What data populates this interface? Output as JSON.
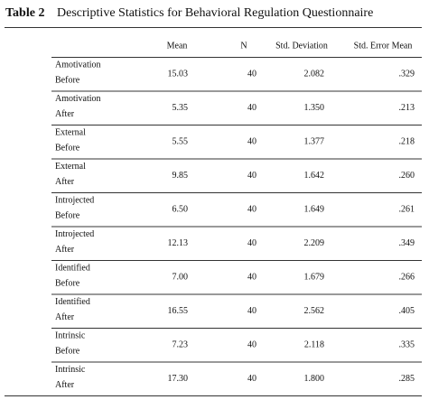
{
  "table_label": "Table 2",
  "title": "Descriptive Statistics for Behavioral Regulation Questionnaire",
  "table": {
    "header": [
      "Mean",
      "N",
      "Std. Deviation",
      "Std. Error Mean"
    ],
    "rows": [
      {
        "label": [
          "Amotivation",
          "Before"
        ],
        "cells": [
          "15.03",
          "40",
          "2.082",
          ".329"
        ]
      },
      {
        "label": [
          "Amotivation",
          "After"
        ],
        "cells": [
          "5.35",
          "40",
          "1.350",
          ".213"
        ]
      },
      {
        "label": [
          "External",
          "Before"
        ],
        "cells": [
          "5.55",
          "40",
          "1.377",
          ".218"
        ]
      },
      {
        "label": [
          "External",
          "After"
        ],
        "cells": [
          "9.85",
          "40",
          "1.642",
          ".260"
        ]
      },
      {
        "label": [
          "Introjected",
          "Before"
        ],
        "cells": [
          "6.50",
          "40",
          "1.649",
          ".261"
        ]
      },
      {
        "label": [
          "Introjected",
          "After"
        ],
        "cells": [
          "12.13",
          "40",
          "2.209",
          ".349"
        ]
      },
      {
        "label": [
          "Identified",
          "Before"
        ],
        "cells": [
          "7.00",
          "40",
          "1.679",
          ".266"
        ]
      },
      {
        "label": [
          "Identified",
          "After"
        ],
        "cells": [
          "16.55",
          "40",
          "2.562",
          ".405"
        ]
      },
      {
        "label": [
          "Intrinsic",
          "Before"
        ],
        "cells": [
          "7.23",
          "40",
          "2.118",
          ".335"
        ]
      },
      {
        "label": [
          "Intrinsic",
          "After"
        ],
        "cells": [
          "17.30",
          "40",
          "1.800",
          ".285"
        ]
      }
    ]
  }
}
